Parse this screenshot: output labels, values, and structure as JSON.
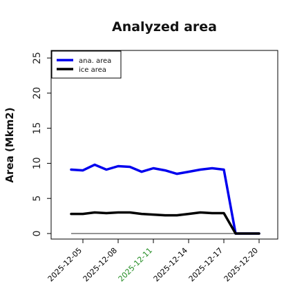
{
  "chart_data": {
    "type": "line",
    "title": "Analyzed area",
    "xlabel": "",
    "ylabel": "Area (Mkm2)",
    "ylim": [
      0,
      25
    ],
    "yticks": [
      0,
      5,
      10,
      15,
      20,
      25
    ],
    "x": [
      "2025-12-04",
      "2025-12-05",
      "2025-12-06",
      "2025-12-07",
      "2025-12-08",
      "2025-12-09",
      "2025-12-10",
      "2025-12-11",
      "2025-12-12",
      "2025-12-13",
      "2025-12-14",
      "2025-12-15",
      "2025-12-16",
      "2025-12-17",
      "2025-12-18",
      "2025-12-19",
      "2025-12-20"
    ],
    "xtick_labels": [
      {
        "label": "2025-12-05",
        "color": "#000000"
      },
      {
        "label": "2025-12-08",
        "color": "#000000"
      },
      {
        "label": "2025-12-11",
        "color": "#228B22"
      },
      {
        "label": "2025-12-14",
        "color": "#000000"
      },
      {
        "label": "2025-12-17",
        "color": "#000000"
      },
      {
        "label": "2025-12-20",
        "color": "#000000"
      }
    ],
    "series": [
      {
        "name": "ana. area",
        "color": "#0000ee",
        "values": [
          9.1,
          9.0,
          9.8,
          9.1,
          9.6,
          9.5,
          8.8,
          9.3,
          9.0,
          8.5,
          8.8,
          9.1,
          9.3,
          9.1,
          0,
          0,
          0
        ]
      },
      {
        "name": "ice area",
        "color": "#000000",
        "values": [
          2.8,
          2.8,
          3.0,
          2.9,
          3.0,
          3.0,
          2.8,
          2.7,
          2.6,
          2.6,
          2.8,
          3.0,
          2.9,
          2.9,
          0,
          0,
          0
        ]
      }
    ],
    "reference_line": {
      "y": 0,
      "color": "#555555"
    },
    "legend_position": "top-left",
    "grid": false
  }
}
